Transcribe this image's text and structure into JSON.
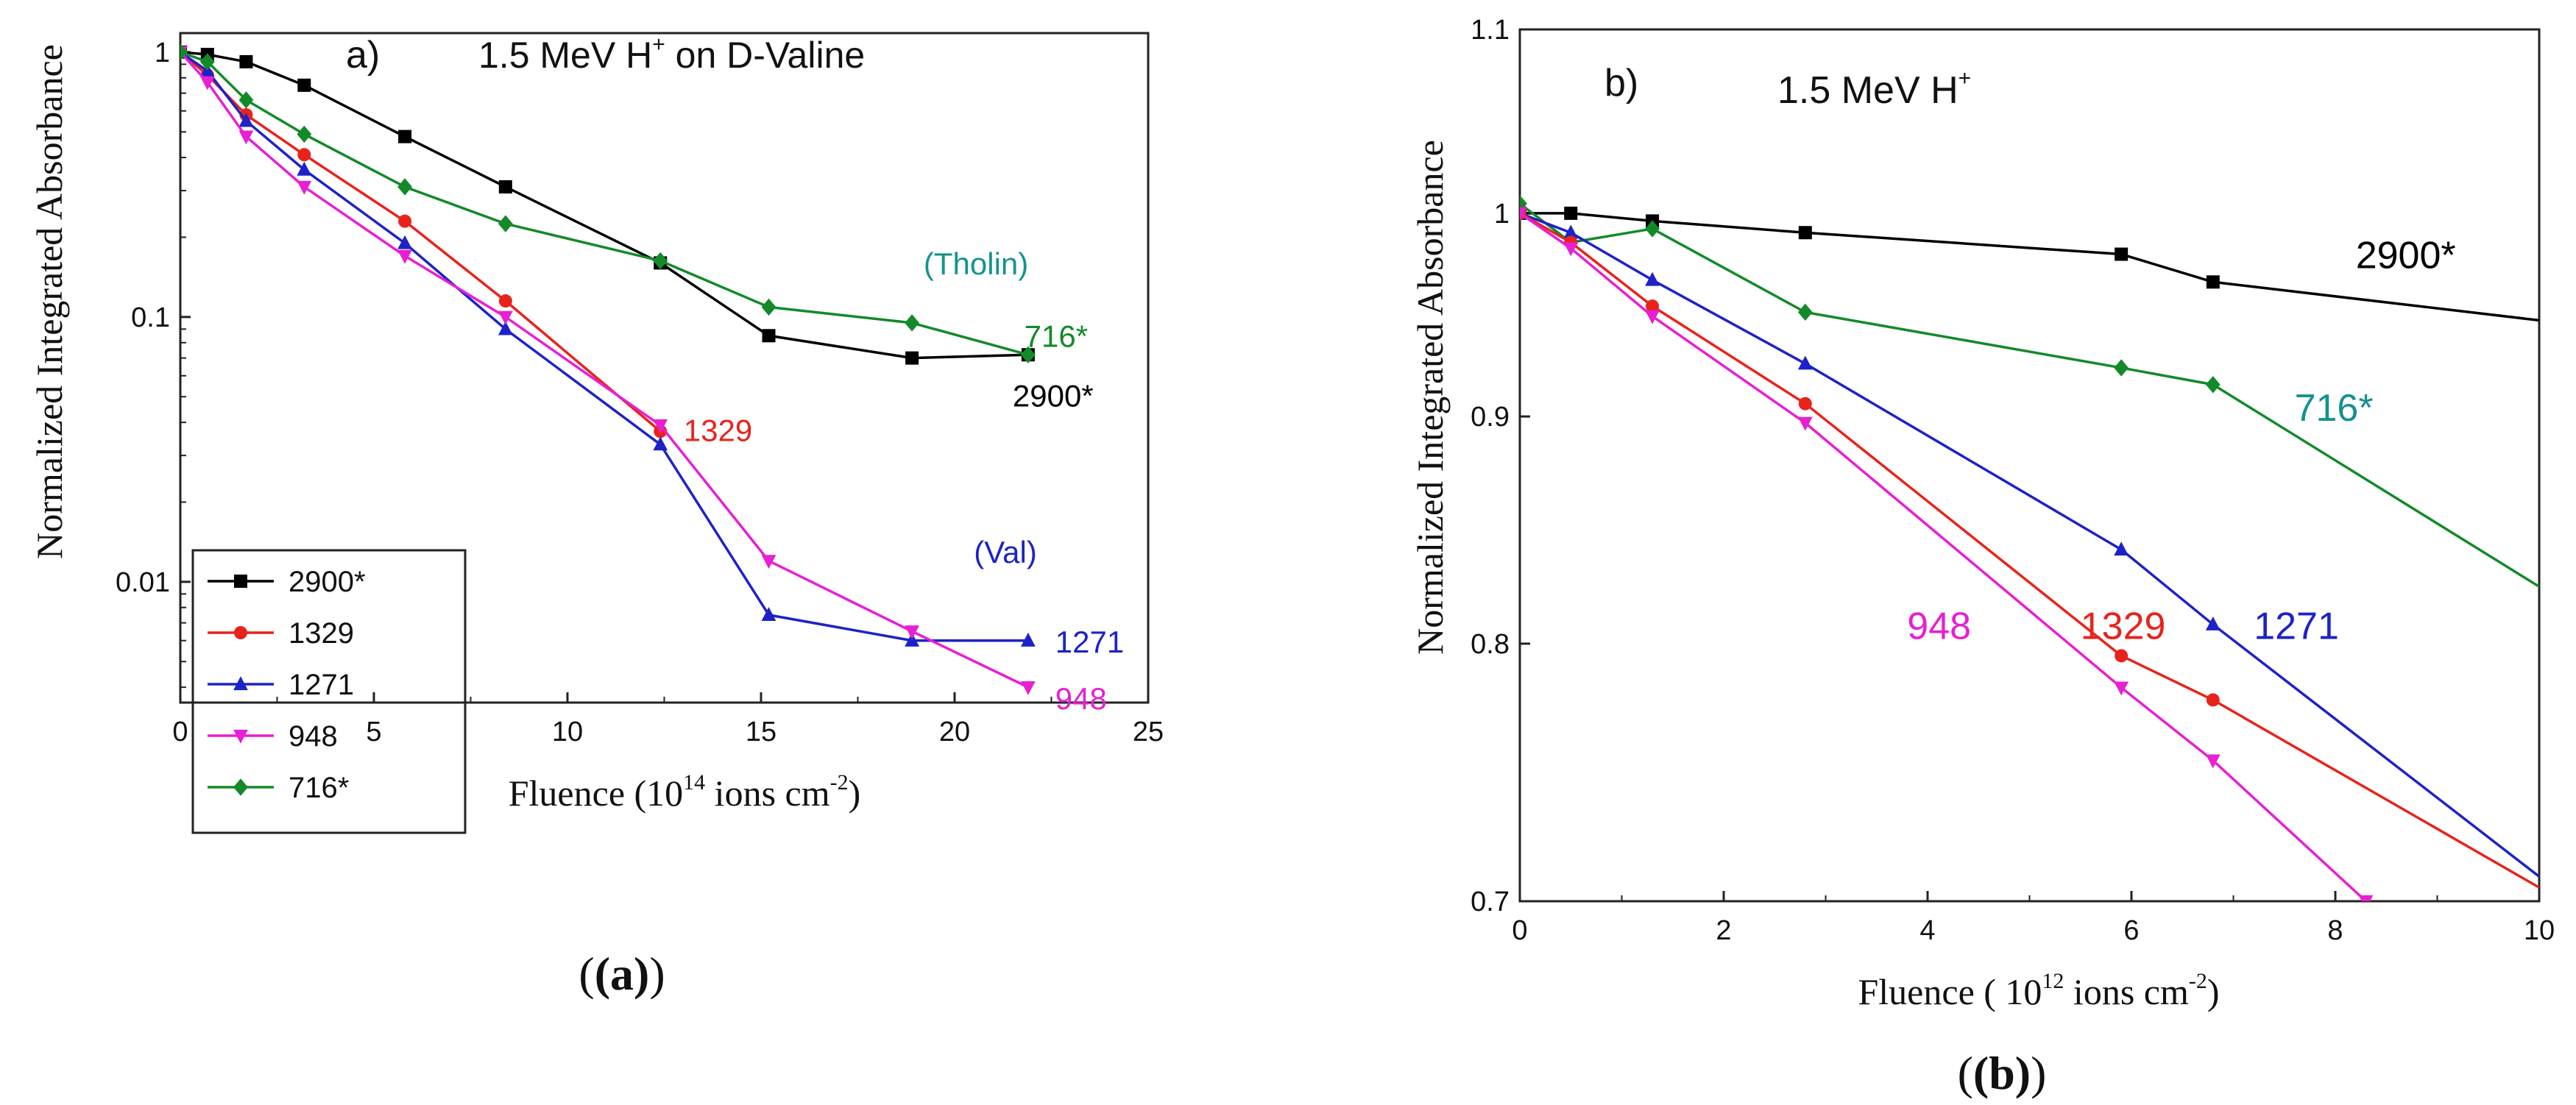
{
  "chart_data": [
    {
      "id": "a",
      "type": "line",
      "panel_letter": "a)",
      "title": "1.5 MeV  H",
      "title_sup": "+",
      "title_suffix": " on D-Valine",
      "xlabel": "Fluence (10",
      "xlabel_sup": "14",
      "xlabel_mid": " ions cm",
      "xlabel_sup2": "-2",
      "xlabel_end": ")",
      "ylabel": "Normalized Integrated Absorbance",
      "yscale": "log",
      "xlim": [
        0,
        25
      ],
      "ylim": [
        0.0035,
        1.18
      ],
      "x_ticks": [
        0,
        5,
        10,
        15,
        20,
        25
      ],
      "y_ticks": [
        {
          "value": 0.01,
          "label": "0.01"
        },
        {
          "value": 0.1,
          "label": "0.1"
        },
        {
          "value": 1,
          "label": "1"
        }
      ],
      "caption": "(a)",
      "series": [
        {
          "name": "2900*",
          "color": "#000000",
          "marker": "square",
          "x": [
            0,
            0.7,
            1.7,
            3.2,
            5.8,
            8.4,
            12.4,
            15.2,
            18.9,
            21.9
          ],
          "y": [
            1.0,
            0.98,
            0.92,
            0.75,
            0.48,
            0.31,
            0.16,
            0.085,
            0.07,
            0.072
          ]
        },
        {
          "name": "1329",
          "color": "#e8231c",
          "marker": "circle",
          "x": [
            0,
            0.7,
            1.7,
            3.2,
            5.8,
            8.4,
            12.4
          ],
          "y": [
            1.0,
            0.82,
            0.58,
            0.41,
            0.23,
            0.115,
            0.037
          ]
        },
        {
          "name": "1271",
          "color": "#1d22c8",
          "marker": "triangle-up",
          "x": [
            0,
            0.7,
            1.7,
            3.2,
            5.8,
            8.4,
            12.4,
            15.2,
            18.9,
            21.9
          ],
          "y": [
            1.0,
            0.85,
            0.55,
            0.36,
            0.19,
            0.09,
            0.033,
            0.0075,
            0.006,
            0.006
          ]
        },
        {
          "name": "948",
          "color": "#e81fd2",
          "marker": "triangle-down",
          "x": [
            0,
            0.7,
            1.7,
            3.2,
            5.8,
            8.4,
            12.4,
            15.2,
            18.9,
            21.9
          ],
          "y": [
            1.0,
            0.77,
            0.48,
            0.31,
            0.17,
            0.1,
            0.039,
            0.012,
            0.0065,
            0.004
          ]
        },
        {
          "name": "716*",
          "color": "#138a2a",
          "marker": "diamond",
          "x": [
            0,
            0.7,
            1.7,
            3.2,
            5.8,
            8.4,
            12.4,
            15.2,
            18.9,
            21.9
          ],
          "y": [
            1.0,
            0.92,
            0.66,
            0.49,
            0.31,
            0.225,
            0.163,
            0.109,
            0.095,
            0.072
          ]
        }
      ],
      "annotations": [
        {
          "text": "(Tholin)",
          "color": "#14928f",
          "x": 19.2,
          "y": 0.145
        },
        {
          "text": "716*",
          "color": "#138a2a",
          "x": 21.8,
          "y": 0.077
        },
        {
          "text": "2900*",
          "color": "#000000",
          "x": 21.5,
          "y": 0.046
        },
        {
          "text": "1329",
          "color": "#e8231c",
          "x": 13.0,
          "y": 0.034
        },
        {
          "text": "(Val)",
          "color": "#1d22c8",
          "x": 20.5,
          "y": 0.0118
        },
        {
          "text": "1271",
          "color": "#1d22c8",
          "x": 22.6,
          "y": 0.0054
        },
        {
          "text": "948",
          "color": "#e81fd2",
          "x": 22.6,
          "y": 0.0033
        }
      ],
      "legend": {
        "placement": "bottom-left",
        "entries": [
          "2900*",
          "1329",
          "1271",
          "948",
          "716*"
        ]
      }
    },
    {
      "id": "b",
      "type": "line",
      "panel_letter": "b)",
      "title": "1.5 MeV  H",
      "title_sup": "+",
      "title_suffix": "",
      "xlabel": "Fluence ( 10",
      "xlabel_sup": "12",
      "xlabel_mid": "  ions cm",
      "xlabel_sup2": "-2",
      "xlabel_end": ")",
      "ylabel": "Normalized Integrated Absorbance",
      "yscale": "log",
      "xlim": [
        0,
        10
      ],
      "ylim": [
        0.7,
        1.1
      ],
      "x_ticks": [
        0,
        2,
        4,
        6,
        8,
        10
      ],
      "y_ticks": [
        {
          "value": 0.7,
          "label": "0.7"
        },
        {
          "value": 0.8,
          "label": "0.8"
        },
        {
          "value": 0.9,
          "label": "0.9"
        },
        {
          "value": 1.0,
          "label": "1"
        },
        {
          "value": 1.1,
          "label": "1.1"
        }
      ],
      "caption": "(b)",
      "series": [
        {
          "name": "2900*",
          "color": "#000000",
          "marker": "square",
          "x": [
            0,
            0.5,
            1.3,
            2.8,
            5.9,
            6.8,
            10.0
          ],
          "y": [
            1.0,
            1.0,
            0.996,
            0.99,
            0.979,
            0.965,
            0.946
          ]
        },
        {
          "name": "716*",
          "color": "#138a2a",
          "marker": "diamond",
          "x": [
            0,
            0.5,
            1.3,
            2.8,
            5.9,
            6.8,
            10.0
          ],
          "y": [
            1.005,
            0.985,
            0.992,
            0.95,
            0.923,
            0.915,
            0.824
          ]
        },
        {
          "name": "1271",
          "color": "#1d22c8",
          "marker": "triangle-up",
          "x": [
            0,
            0.5,
            1.3,
            2.8,
            5.9,
            6.8,
            10.0
          ],
          "y": [
            1.0,
            0.99,
            0.966,
            0.925,
            0.84,
            0.808,
            0.709
          ]
        },
        {
          "name": "1329",
          "color": "#e8231c",
          "marker": "circle",
          "x": [
            0,
            0.5,
            1.3,
            2.8,
            5.9,
            6.8,
            10.0
          ],
          "y": [
            1.0,
            0.985,
            0.953,
            0.906,
            0.795,
            0.777,
            0.705
          ]
        },
        {
          "name": "948",
          "color": "#e81fd2",
          "marker": "triangle-down",
          "x": [
            0,
            0.5,
            1.3,
            2.8,
            5.9,
            6.8,
            8.3
          ],
          "y": [
            1.0,
            0.982,
            0.948,
            0.897,
            0.782,
            0.753,
            0.7
          ]
        }
      ],
      "annotations": [
        {
          "text": "2900*",
          "color": "#000000",
          "x": 8.2,
          "y": 0.972
        },
        {
          "text": "716*",
          "color": "#14928f",
          "x": 7.6,
          "y": 0.898
        },
        {
          "text": "948",
          "color": "#e81fd2",
          "x": 3.8,
          "y": 0.802
        },
        {
          "text": "1329",
          "color": "#e8231c",
          "x": 5.5,
          "y": 0.802
        },
        {
          "text": "1271",
          "color": "#1d22c8",
          "x": 7.2,
          "y": 0.802
        }
      ],
      "legend": null
    }
  ]
}
